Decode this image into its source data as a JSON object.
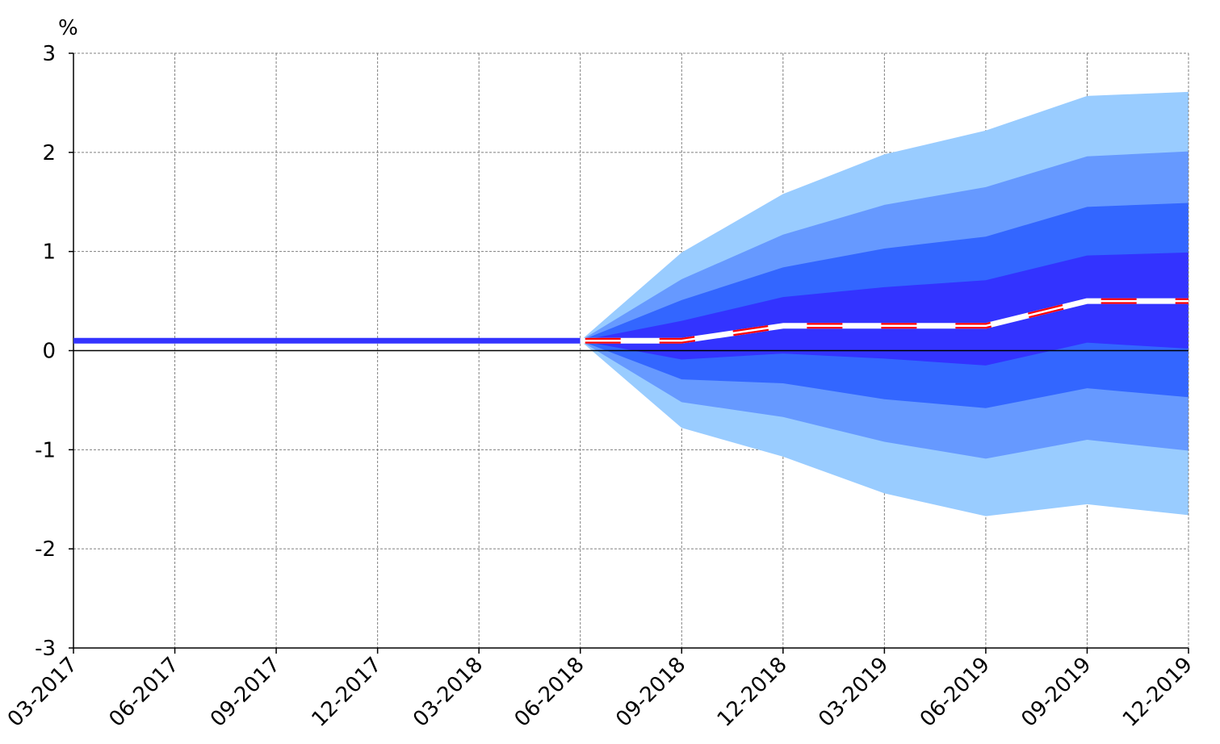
{
  "chart_data": {
    "type": "area",
    "title": "",
    "ylabel": "%",
    "xlabel": "",
    "ylim": [
      -3,
      3
    ],
    "yticks": [
      "3",
      "2",
      "1",
      "0",
      "-1",
      "-2",
      "-3"
    ],
    "x": [
      "03-2017",
      "06-2017",
      "09-2017",
      "12-2017",
      "03-2018",
      "06-2018",
      "09-2018",
      "12-2018",
      "03-2019",
      "06-2019",
      "09-2019",
      "12-2019"
    ],
    "grid": true,
    "legend": "none",
    "history": {
      "x_range": [
        "03-2017",
        "06-2018"
      ],
      "values": [
        0.1,
        0.1,
        0.1,
        0.1,
        0.1,
        0.1
      ],
      "color": "#3333ff"
    },
    "fan": {
      "x": [
        "06-2018",
        "09-2018",
        "12-2018",
        "03-2019",
        "06-2019",
        "09-2019",
        "12-2019"
      ],
      "median": [
        0.1,
        0.1,
        0.25,
        0.25,
        0.25,
        0.5,
        0.5
      ],
      "bands": [
        {
          "lower": [
            0.1,
            -0.78,
            -1.07,
            -1.44,
            -1.67,
            -1.55,
            -1.66
          ],
          "upper": [
            0.1,
            0.99,
            1.58,
            1.98,
            2.22,
            2.57,
            2.61
          ],
          "color": "#99ccff"
        },
        {
          "lower": [
            0.1,
            -0.52,
            -0.67,
            -0.92,
            -1.09,
            -0.9,
            -1.01
          ],
          "upper": [
            0.1,
            0.72,
            1.17,
            1.47,
            1.65,
            1.96,
            2.01
          ],
          "color": "#6699ff"
        },
        {
          "lower": [
            0.1,
            -0.29,
            -0.33,
            -0.49,
            -0.58,
            -0.38,
            -0.47
          ],
          "upper": [
            0.1,
            0.51,
            0.84,
            1.03,
            1.15,
            1.45,
            1.49
          ],
          "color": "#3366ff"
        },
        {
          "lower": [
            0.1,
            -0.09,
            -0.03,
            -0.08,
            -0.15,
            0.08,
            0.02
          ],
          "upper": [
            0.1,
            0.3,
            0.54,
            0.64,
            0.71,
            0.96,
            0.99
          ],
          "color": "#3333ff"
        }
      ],
      "median_color": "#ffffff",
      "median_dash_color": "#ff0000"
    },
    "colors": {
      "axis": "#000000",
      "grid": "#808080",
      "background": "#ffffff"
    }
  }
}
